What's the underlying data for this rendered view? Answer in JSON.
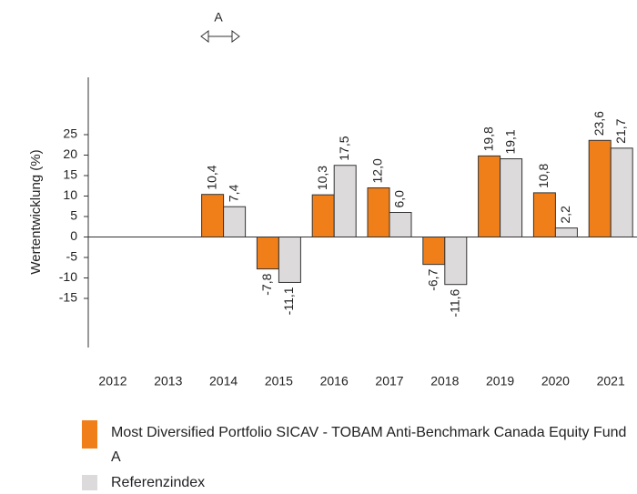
{
  "chart_data": {
    "type": "bar",
    "label": "A",
    "y_label": "Wertentwicklung (%)",
    "categories": [
      "2012",
      "2013",
      "2014",
      "2015",
      "2016",
      "2017",
      "2018",
      "2019",
      "2020",
      "2021"
    ],
    "series": [
      {
        "name": "Most Diversified Portfolio SICAV - TOBAM Anti-Benchmark Canada Equity Fund A",
        "color": "#f07f19",
        "values": [
          null,
          null,
          10.4,
          -7.8,
          10.3,
          12.0,
          -6.7,
          19.8,
          10.8,
          23.6
        ],
        "value_labels": [
          null,
          null,
          "10,4",
          "-7,8",
          "10,3",
          "12,0",
          "-6,7",
          "19,8",
          "10,8",
          "23,6"
        ]
      },
      {
        "name": "Referenzindex",
        "color": "#dcdada",
        "values": [
          null,
          null,
          7.4,
          -11.1,
          17.5,
          6.0,
          -11.6,
          19.1,
          2.2,
          21.7
        ],
        "value_labels": [
          null,
          null,
          "7,4",
          "-11,1",
          "17,5",
          "6,0",
          "-11,6",
          "19,1",
          "2,2",
          "21,7"
        ]
      }
    ],
    "ylim": [
      -27,
      39
    ],
    "yticks": [
      25,
      20,
      15,
      10,
      5,
      0,
      -5,
      -10,
      -15
    ],
    "grid": false
  }
}
